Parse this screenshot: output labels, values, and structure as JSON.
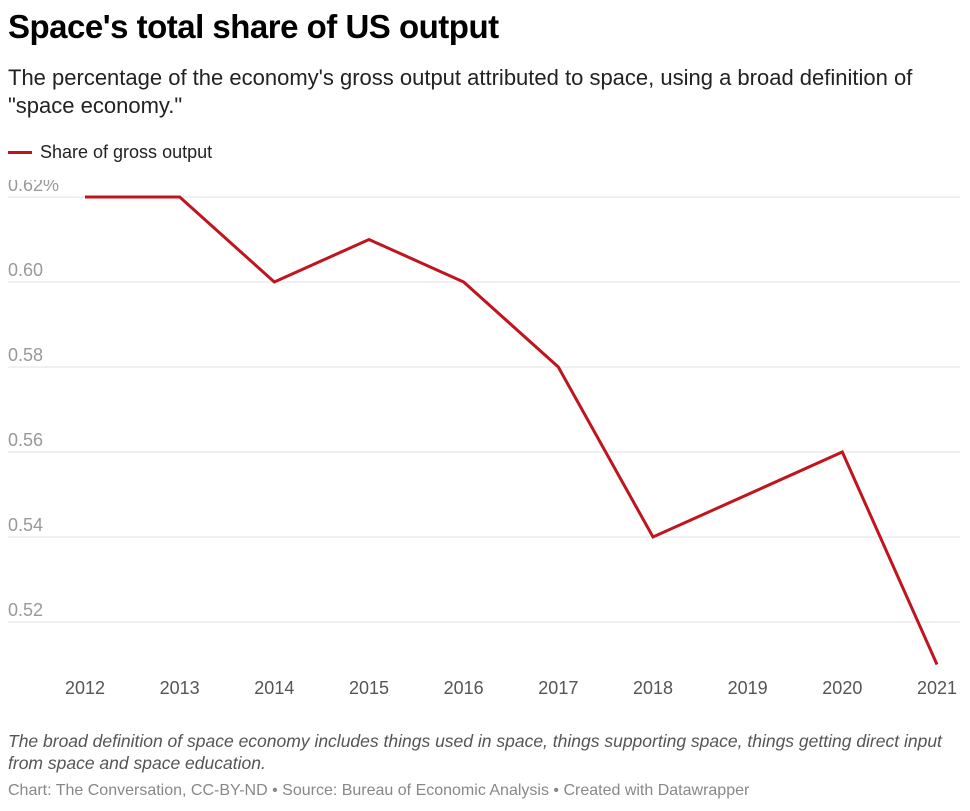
{
  "title": "Space's total share of US output",
  "subtitle": "The percentage of the economy's gross output attributed to space, using a broad definition of \"space economy.\"",
  "legend": {
    "label": "Share of gross output",
    "color": "#c0141e"
  },
  "chart_data": {
    "type": "line",
    "title": "Space's total share of US output",
    "xlabel": "",
    "ylabel": "",
    "x": [
      "2012",
      "2013",
      "2014",
      "2015",
      "2016",
      "2017",
      "2018",
      "2019",
      "2020",
      "2021"
    ],
    "series": [
      {
        "name": "Share of gross output",
        "values": [
          0.62,
          0.62,
          0.6,
          0.61,
          0.6,
          0.58,
          0.54,
          0.55,
          0.56,
          0.51
        ],
        "color": "#c0141e"
      }
    ],
    "yticks": [
      {
        "value": 0.62,
        "label": "0.62%"
      },
      {
        "value": 0.6,
        "label": "0.60"
      },
      {
        "value": 0.58,
        "label": "0.58"
      },
      {
        "value": 0.56,
        "label": "0.56"
      },
      {
        "value": 0.54,
        "label": "0.54"
      },
      {
        "value": 0.52,
        "label": "0.52"
      }
    ],
    "ylim": [
      0.51,
      0.62
    ],
    "grid": true,
    "legend_position": "top-left"
  },
  "notes": "The broad definition of space economy includes things used in space, things supporting space, things getting direct input from space and space education.",
  "footer": "Chart: The Conversation, CC-BY-ND • Source: Bureau of Economic Analysis • Created with Datawrapper"
}
